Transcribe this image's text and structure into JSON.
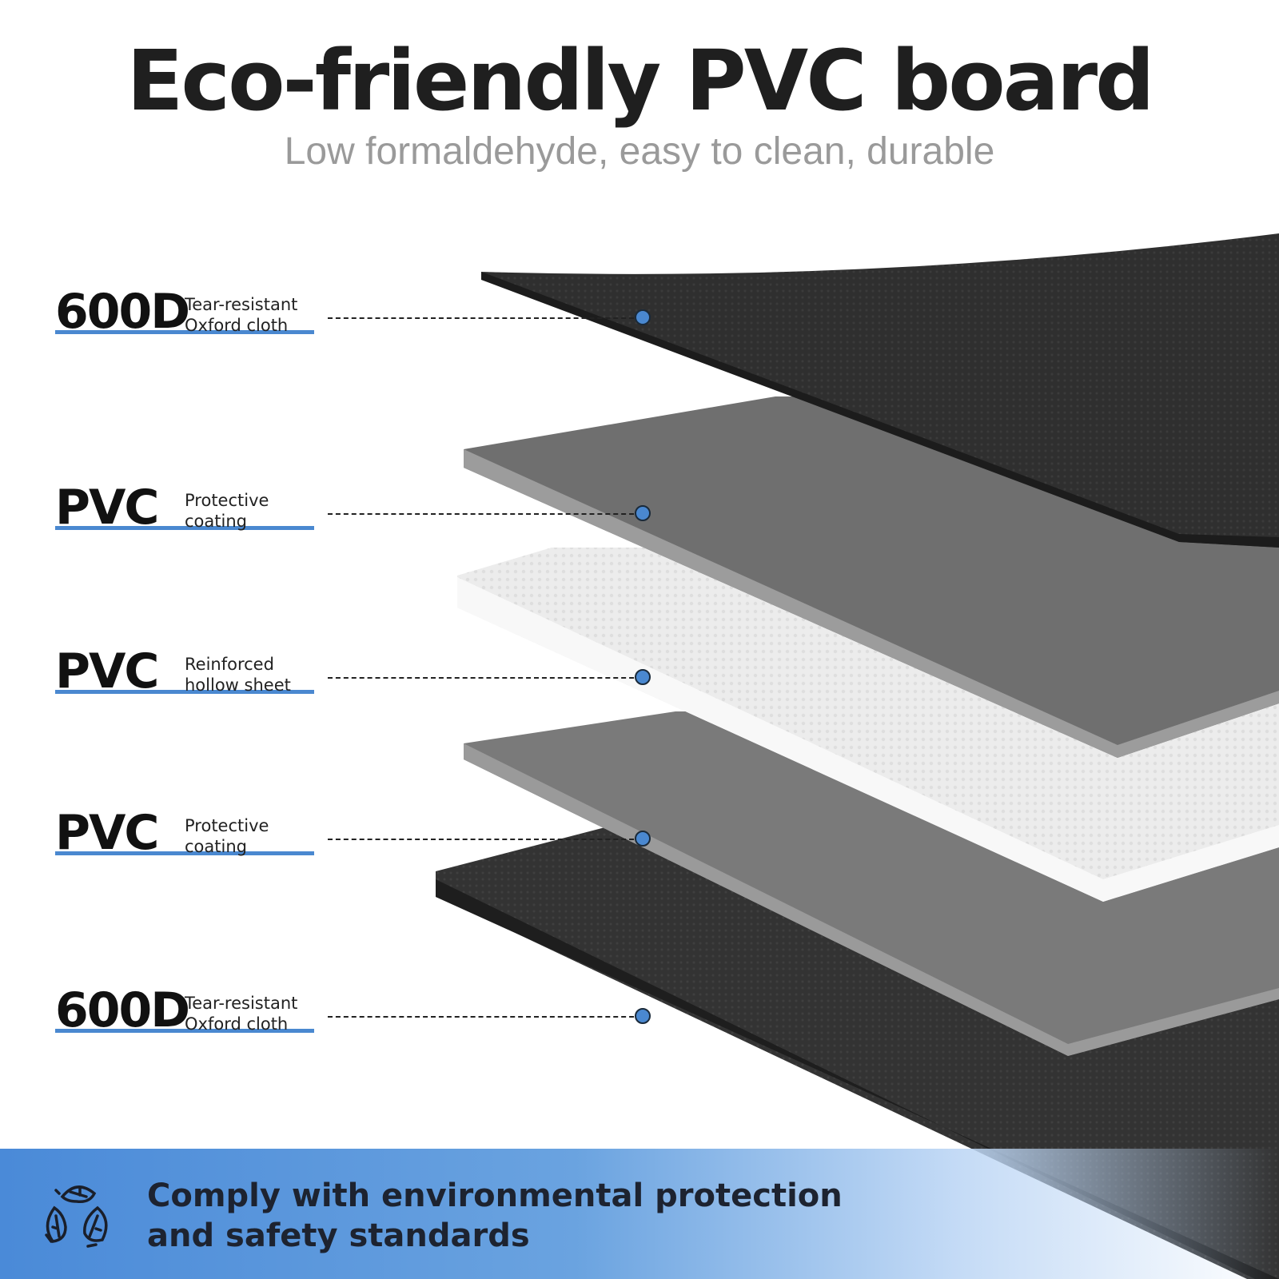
{
  "header": {
    "title": "Eco-friendly PVC board",
    "subtitle": "Low formaldehyde, easy to clean, durable"
  },
  "layers": [
    {
      "material": "600D",
      "line1": "Tear-resistant",
      "line2": "Oxford cloth",
      "color": "#2e2e2e"
    },
    {
      "material": "PVC",
      "line1": "Protective",
      "line2": "coating",
      "color": "#6e6e6e"
    },
    {
      "material": "PVC",
      "line1": "Reinforced",
      "line2": "hollow sheet",
      "color": "#f0f0f0"
    },
    {
      "material": "PVC",
      "line1": "Protective",
      "line2": "coating",
      "color": "#6e6e6e"
    },
    {
      "material": "600D",
      "line1": "Tear-resistant",
      "line2": "Oxford cloth",
      "color": "#2e2e2e"
    }
  ],
  "banner": {
    "icon": "recycle-leaves-icon",
    "line1": "Comply with environmental protection",
    "line2": "and safety standards"
  },
  "colors": {
    "accent": "#4a88d0",
    "text": "#1f1f1f"
  }
}
